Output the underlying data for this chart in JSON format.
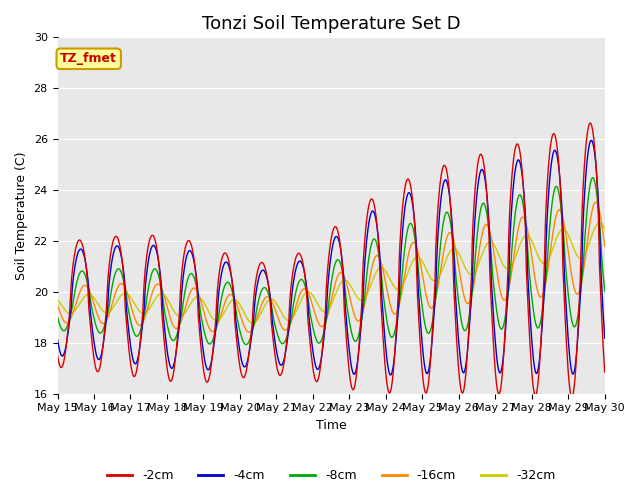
{
  "title": "Tonzi Soil Temperature Set D",
  "xlabel": "Time",
  "ylabel": "Soil Temperature (C)",
  "annotation": "TZ_fmet",
  "ylim": [
    16,
    30
  ],
  "xlim_days": [
    15,
    30
  ],
  "series": [
    "-2cm",
    "-4cm",
    "-8cm",
    "-16cm",
    "-32cm"
  ],
  "colors": [
    "#dd0000",
    "#0000cc",
    "#00aa00",
    "#ff8800",
    "#cccc00"
  ],
  "background_color": "#e8e8e8",
  "grid_color": "#ffffff",
  "annotation_bg": "#ffff99",
  "annotation_border": "#cc9900",
  "title_fontsize": 13,
  "label_fontsize": 9,
  "tick_fontsize": 8,
  "figsize": [
    6.4,
    4.8
  ],
  "dpi": 100
}
